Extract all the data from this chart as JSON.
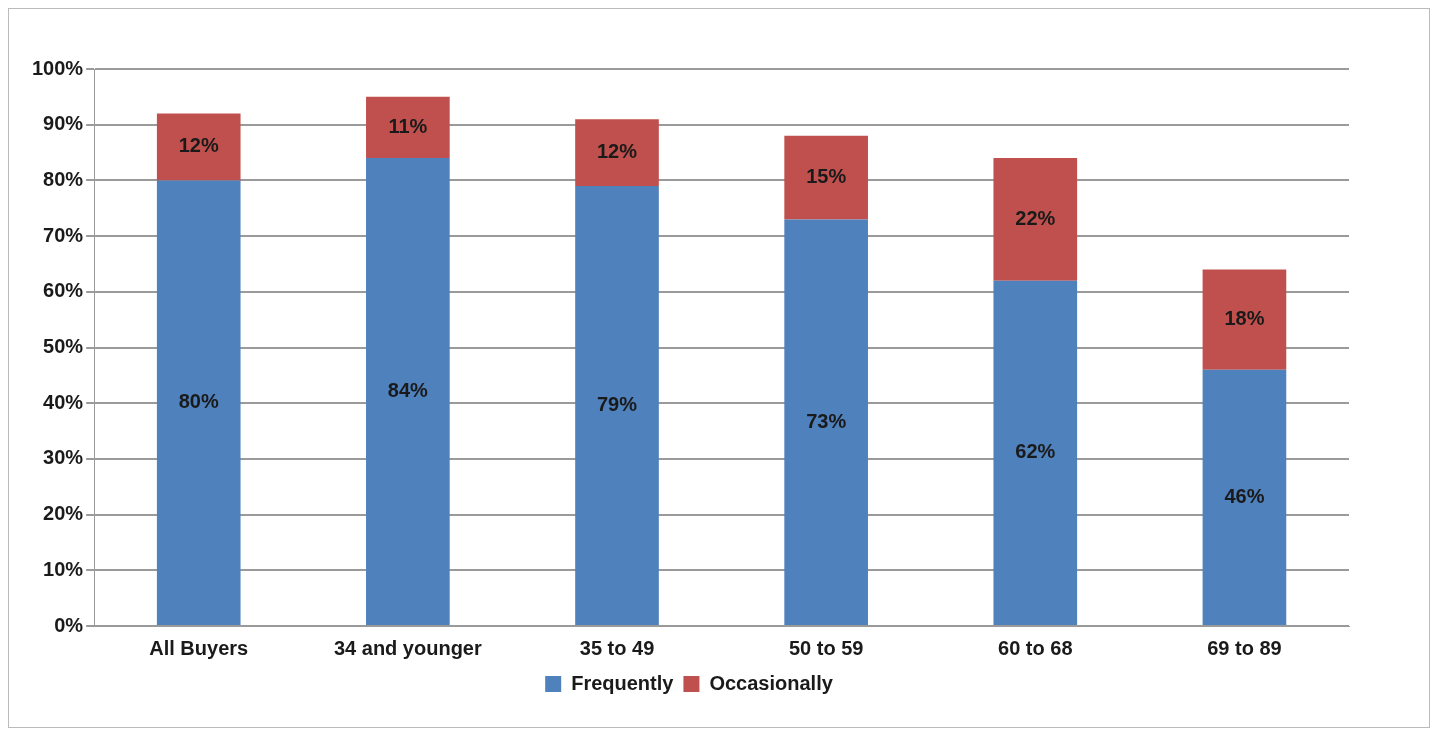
{
  "chart_data": {
    "type": "bar",
    "stacked": true,
    "categories": [
      "All Buyers",
      "34 and younger",
      "35 to 49",
      "50 to 59",
      "60 to 68",
      "69 to 89"
    ],
    "series": [
      {
        "name": "Frequently",
        "color": "#4f81bd",
        "values": [
          80,
          84,
          79,
          73,
          62,
          46
        ],
        "value_labels": [
          "80%",
          "84%",
          "79%",
          "73%",
          "62%",
          "46%"
        ]
      },
      {
        "name": "Occasionally",
        "color": "#c0504d",
        "values": [
          12,
          11,
          12,
          15,
          22,
          18
        ],
        "value_labels": [
          "12%",
          "11%",
          "12%",
          "15%",
          "22%",
          "18%"
        ]
      }
    ],
    "ylim": [
      0,
      100
    ],
    "yticks": [
      {
        "value": 0,
        "label": "0%"
      },
      {
        "value": 10,
        "label": "10%"
      },
      {
        "value": 20,
        "label": "20%"
      },
      {
        "value": 30,
        "label": "30%"
      },
      {
        "value": 40,
        "label": "40%"
      },
      {
        "value": 50,
        "label": "50%"
      },
      {
        "value": 60,
        "label": "60%"
      },
      {
        "value": 70,
        "label": "70%"
      },
      {
        "value": 80,
        "label": "80%"
      },
      {
        "value": 90,
        "label": "90%"
      },
      {
        "value": 100,
        "label": "100%"
      }
    ],
    "grid": "y",
    "legend": "bottom"
  }
}
